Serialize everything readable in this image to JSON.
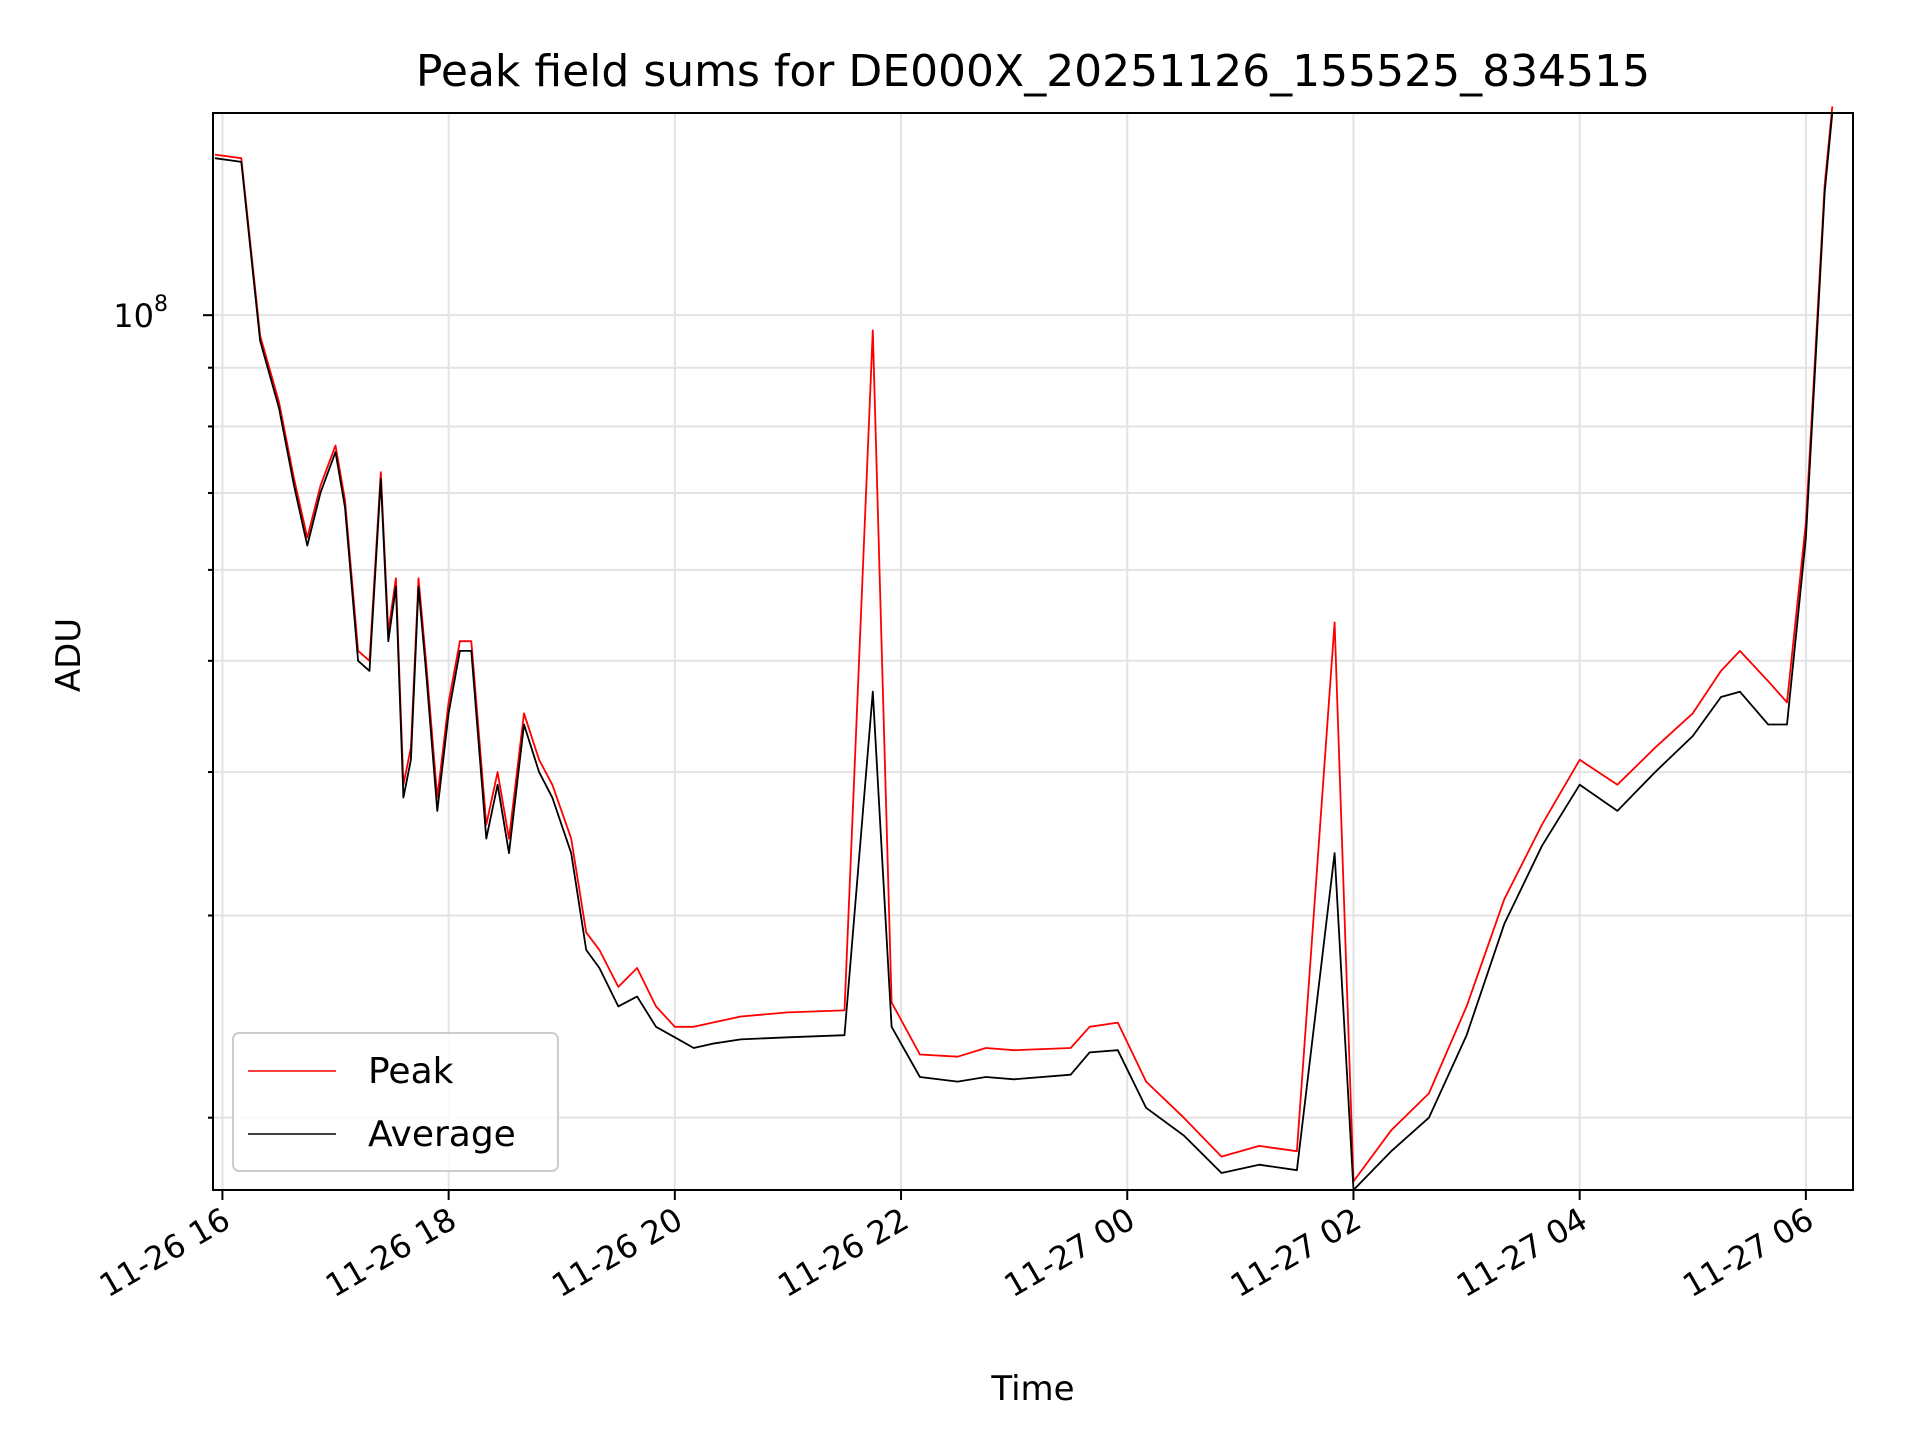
{
  "chart_data": {
    "type": "line",
    "title": "Peak field sums for DE000X_20251126_155525_834515",
    "xlabel": "Time",
    "ylabel": "ADU",
    "yscale": "log",
    "ylim": [
      17300000,
      150000000
    ],
    "xlim": [
      "11-26 15:55",
      "11-27 06:25"
    ],
    "grid": true,
    "legend_position": "lower-left",
    "x_ticks": [
      "11-26 16",
      "11-26 18",
      "11-26 20",
      "11-26 22",
      "11-27 00",
      "11-27 02",
      "11-27 04",
      "11-27 06"
    ],
    "y_ticks": [
      {
        "value": 100000000,
        "base": "10",
        "exponent": "8"
      }
    ],
    "x": [
      "11-26 15:56",
      "11-26 16:10",
      "11-26 16:20",
      "11-26 16:30",
      "11-26 16:38",
      "11-26 16:45",
      "11-26 16:52",
      "11-26 17:00",
      "11-26 17:05",
      "11-26 17:12",
      "11-26 17:18",
      "11-26 17:24",
      "11-26 17:28",
      "11-26 17:32",
      "11-26 17:36",
      "11-26 17:40",
      "11-26 17:44",
      "11-26 17:48",
      "11-26 17:54",
      "11-26 18:00",
      "11-26 18:06",
      "11-26 18:12",
      "11-26 18:20",
      "11-26 18:26",
      "11-26 18:32",
      "11-26 18:40",
      "11-26 18:48",
      "11-26 18:55",
      "11-26 19:05",
      "11-26 19:13",
      "11-26 19:20",
      "11-26 19:30",
      "11-26 19:40",
      "11-26 19:50",
      "11-26 20:00",
      "11-26 20:10",
      "11-26 20:20",
      "11-26 20:35",
      "11-26 21:00",
      "11-26 21:30",
      "11-26 21:45",
      "11-26 21:55",
      "11-26 22:10",
      "11-26 22:30",
      "11-26 22:45",
      "11-26 23:00",
      "11-26 23:30",
      "11-26 23:40",
      "11-26 23:55",
      "11-27 00:10",
      "11-27 00:30",
      "11-27 00:50",
      "11-27 01:10",
      "11-27 01:30",
      "11-27 01:50",
      "11-27 02:00",
      "11-27 02:20",
      "11-27 02:40",
      "11-27 03:00",
      "11-27 03:20",
      "11-27 03:40",
      "11-27 04:00",
      "11-27 04:20",
      "11-27 04:40",
      "11-27 05:00",
      "11-27 05:15",
      "11-27 05:25",
      "11-27 05:40",
      "11-27 05:50",
      "11-27 06:00",
      "11-27 06:10",
      "11-27 06:14"
    ],
    "series": [
      {
        "name": "Peak",
        "color": "#ff0000",
        "values": [
          138000000,
          137000000,
          96000000,
          84000000,
          72000000,
          64000000,
          71000000,
          77000000,
          69000000,
          51000000,
          50000000,
          73000000,
          53000000,
          59000000,
          39000000,
          42000000,
          59000000,
          50000000,
          38000000,
          46000000,
          52000000,
          52000000,
          36000000,
          40000000,
          35000000,
          45000000,
          41000000,
          39000000,
          35000000,
          29000000,
          28000000,
          26000000,
          27000000,
          25000000,
          24000000,
          24000000,
          24200000,
          24500000,
          24700000,
          24800000,
          97000000,
          25200000,
          22700000,
          22600000,
          23000000,
          22900000,
          23000000,
          24000000,
          24200000,
          21500000,
          20000000,
          18500000,
          18900000,
          18700000,
          54000000,
          17600000,
          19500000,
          21000000,
          25000000,
          31000000,
          36000000,
          41000000,
          39000000,
          42000000,
          45000000,
          49000000,
          51000000,
          48000000,
          46000000,
          66000000,
          130000000,
          152000000
        ]
      },
      {
        "name": "Average",
        "color": "#000000",
        "values": [
          137000000,
          136000000,
          95000000,
          83000000,
          71000000,
          63000000,
          70000000,
          76000000,
          68000000,
          50000000,
          49000000,
          72000000,
          52000000,
          58000000,
          38000000,
          41000000,
          58000000,
          49000000,
          37000000,
          45000000,
          51000000,
          51000000,
          35000000,
          39000000,
          34000000,
          44000000,
          40000000,
          38000000,
          34000000,
          28000000,
          27000000,
          25000000,
          25500000,
          24000000,
          23500000,
          23000000,
          23200000,
          23400000,
          23500000,
          23600000,
          47000000,
          24000000,
          21700000,
          21500000,
          21700000,
          21600000,
          21800000,
          22800000,
          22900000,
          20400000,
          19300000,
          17900000,
          18200000,
          18000000,
          34000000,
          17300000,
          18700000,
          20000000,
          23600000,
          29500000,
          34500000,
          39000000,
          37000000,
          40000000,
          43000000,
          46500000,
          47000000,
          44000000,
          44000000,
          64000000,
          128000000,
          150000000
        ]
      }
    ]
  }
}
